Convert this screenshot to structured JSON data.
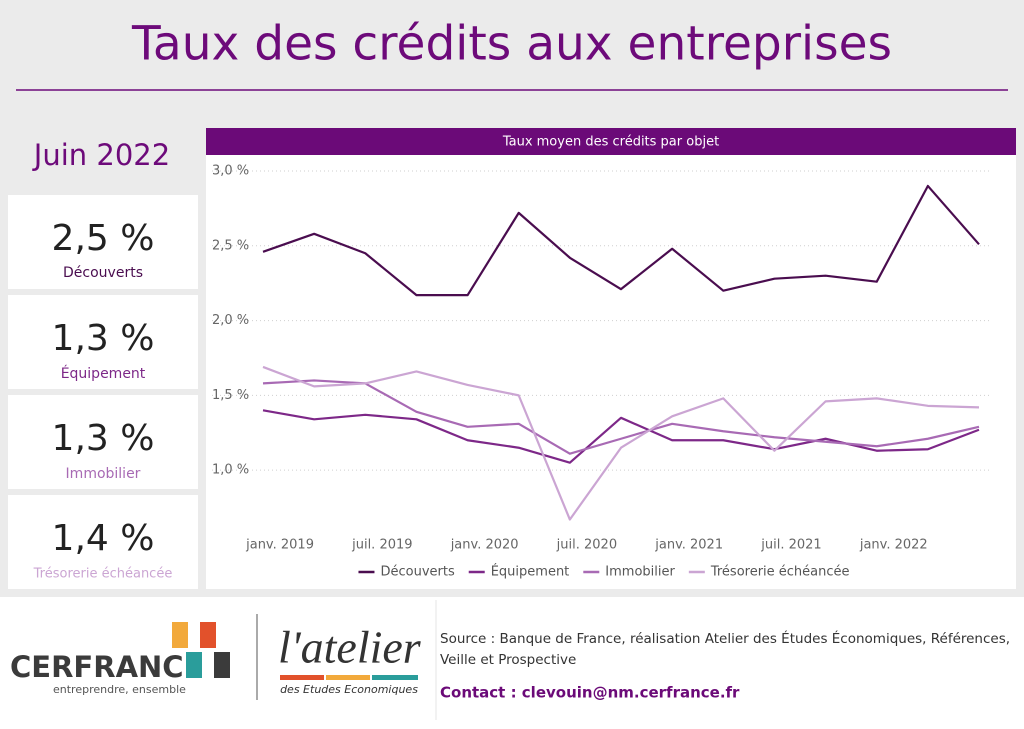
{
  "header": {
    "title": "Taux des crédits aux entreprises",
    "period": "Juin 2022"
  },
  "kpis": [
    {
      "value": "2,5 %",
      "label": "Découverts"
    },
    {
      "value": "1,3 %",
      "label": "Équipement"
    },
    {
      "value": "1,3 %",
      "label": "Immobilier"
    },
    {
      "value": "1,4 %",
      "label": "Trésorerie échéancée"
    }
  ],
  "chart_data": {
    "type": "line",
    "title": "Taux moyen des crédits par objet",
    "x": [
      "2018-12",
      "2019-03",
      "2019-06",
      "2019-09",
      "2019-12",
      "2020-03",
      "2020-06",
      "2020-09",
      "2020-12",
      "2021-03",
      "2021-06",
      "2021-09",
      "2021-12",
      "2022-03",
      "2022-06"
    ],
    "xlim": [
      "2018-12",
      "2022-06"
    ],
    "xticks": [
      {
        "value": "2019-01",
        "label": "janv. 2019"
      },
      {
        "value": "2019-07",
        "label": "juil. 2019"
      },
      {
        "value": "2020-01",
        "label": "janv. 2020"
      },
      {
        "value": "2020-07",
        "label": "juil. 2020"
      },
      {
        "value": "2021-01",
        "label": "janv. 2021"
      },
      {
        "value": "2021-07",
        "label": "juil. 2021"
      },
      {
        "value": "2022-01",
        "label": "janv. 2022"
      }
    ],
    "ylim": [
      0.6,
      3.0
    ],
    "yticks": [
      {
        "value": 1.0,
        "label": "1,0 %"
      },
      {
        "value": 1.5,
        "label": "1,5 %"
      },
      {
        "value": 2.0,
        "label": "2,0 %"
      },
      {
        "value": 2.5,
        "label": "2,5 %"
      },
      {
        "value": 3.0,
        "label": "3,0 %"
      }
    ],
    "grid": true,
    "legend": "bottom",
    "series": [
      {
        "name": "Découverts",
        "color": "#4a0d4f",
        "values": [
          2.46,
          2.58,
          2.45,
          2.17,
          2.17,
          2.72,
          2.42,
          2.21,
          2.48,
          2.2,
          2.28,
          2.3,
          2.26,
          2.9,
          2.51
        ]
      },
      {
        "name": "Équipement",
        "color": "#7d2888",
        "values": [
          1.4,
          1.34,
          1.37,
          1.34,
          1.2,
          1.15,
          1.05,
          1.35,
          1.2,
          1.2,
          1.14,
          1.21,
          1.13,
          1.14,
          1.27
        ]
      },
      {
        "name": "Immobilier",
        "color": "#a86ab4",
        "values": [
          1.58,
          1.6,
          1.58,
          1.39,
          1.29,
          1.31,
          1.11,
          1.21,
          1.31,
          1.26,
          1.22,
          1.19,
          1.16,
          1.21,
          1.29
        ]
      },
      {
        "name": "Trésorerie échéancée",
        "color": "#cba5d3",
        "values": [
          1.69,
          1.56,
          1.58,
          1.66,
          1.57,
          1.5,
          0.67,
          1.15,
          1.36,
          1.48,
          1.13,
          1.46,
          1.48,
          1.43,
          1.42
        ]
      }
    ]
  },
  "footer": {
    "brand": "CERFRANCE",
    "tagline": "entreprendre, ensemble",
    "atelier": "l'atelier",
    "atelier_sub": "des Etudes Economiques",
    "source_1": "Source : Banque de France, réalisation Atelier des Études Économiques, Références,",
    "source_2": "Veille et Prospective",
    "contact": "Contact : clevouin@nm.cerfrance.fr"
  }
}
